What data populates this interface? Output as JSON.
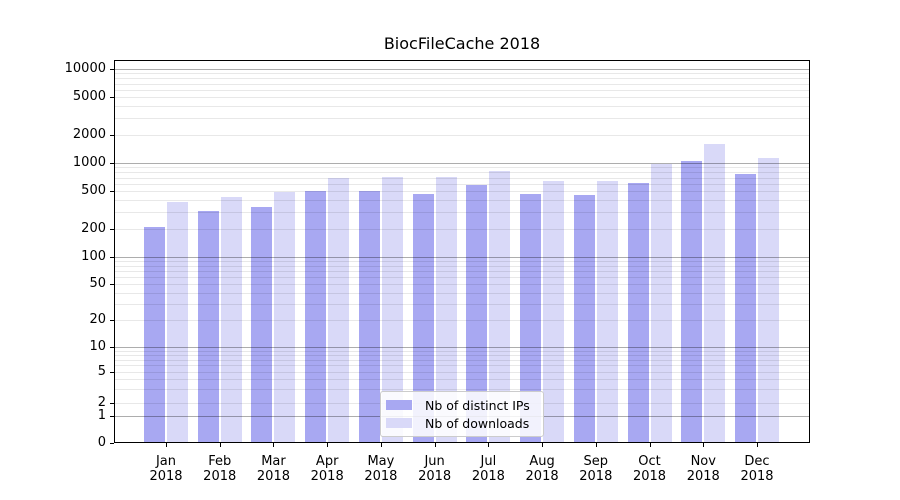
{
  "chart_data": {
    "type": "bar",
    "title": "BiocFileCache 2018",
    "x_categories": [
      "Jan",
      "Feb",
      "Mar",
      "Apr",
      "May",
      "Jun",
      "Jul",
      "Aug",
      "Sep",
      "Oct",
      "Nov",
      "Dec"
    ],
    "x_year_label": "2018",
    "series": [
      {
        "name": "Nb of distinct IPs",
        "color": "#a8a8f2",
        "values": [
          210,
          310,
          340,
          500,
          505,
          470,
          590,
          465,
          455,
          610,
          1050,
          760
        ]
      },
      {
        "name": "Nb of downloads",
        "color": "#d9d9f8",
        "values": [
          385,
          430,
          495,
          700,
          705,
          710,
          820,
          650,
          650,
          975,
          1600,
          1130
        ]
      }
    ],
    "y_ticks": [
      0,
      1,
      2,
      5,
      10,
      20,
      50,
      100,
      200,
      500,
      1000,
      2000,
      5000,
      10000
    ],
    "y_scale": "symlog",
    "ylim": [
      0,
      13000
    ],
    "grid": true,
    "grid_major_levels": [
      1,
      10,
      100,
      1000,
      10000
    ],
    "legend_position": "lower center",
    "axis_color": "#000000",
    "grid_major_color": "rgba(0,0,0,0.32)",
    "grid_minor_color": "rgba(0,0,0,0.09)"
  }
}
